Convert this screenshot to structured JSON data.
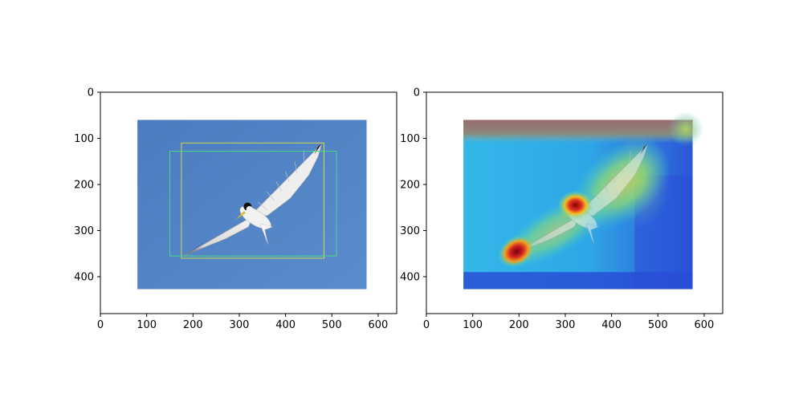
{
  "figure": {
    "panels": [
      {
        "id": "original",
        "image": {
          "subject": "bird in flight against blue sky",
          "extent": {
            "x": [
              80,
              575
            ],
            "y": [
              60,
              427
            ]
          },
          "background_color": "#4d7fc0"
        },
        "boxes": [
          {
            "x": [
              175,
              483
            ],
            "y": [
              110,
              360
            ],
            "color": "#d8d84a"
          },
          {
            "x": [
              150,
              510
            ],
            "y": [
              128,
              355
            ],
            "color": "#4ad884"
          }
        ]
      },
      {
        "id": "heatmap-overlay",
        "image": {
          "subject": "bird in flight with attention heatmap overlay",
          "extent": {
            "x": [
              80,
              575
            ],
            "y": [
              60,
              427
            ]
          },
          "colormap": "jet"
        }
      }
    ],
    "axes": {
      "xlim": [
        0,
        640
      ],
      "ylim": [
        480,
        0
      ],
      "xticks": [
        0,
        100,
        200,
        300,
        400,
        500,
        600
      ],
      "yticks": [
        0,
        100,
        200,
        300,
        400
      ],
      "xtick_labels": [
        "0",
        "100",
        "200",
        "300",
        "400",
        "500",
        "600"
      ],
      "ytick_labels": [
        "0",
        "100",
        "200",
        "300",
        "400"
      ]
    },
    "colors": {
      "sky": "#4d7fc0",
      "axes_frame": "#000000"
    }
  }
}
